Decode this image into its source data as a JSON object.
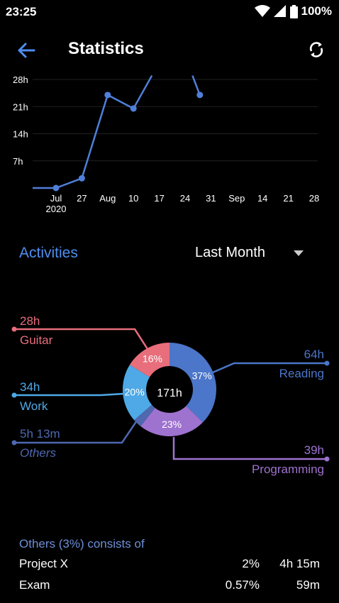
{
  "status_bar": {
    "time": "23:25",
    "battery": "100%"
  },
  "app_bar": {
    "title": "Statistics"
  },
  "chart_data": {
    "type": "line",
    "x": [
      "Jul 2020",
      "27",
      "Aug",
      "10",
      "17",
      "24",
      "31",
      "Sep",
      "14",
      "21",
      "28"
    ],
    "x_tick_labels": [
      [
        "Jul",
        "2020"
      ],
      [
        "27"
      ],
      [
        "Aug"
      ],
      [
        "10"
      ],
      [
        "17"
      ],
      [
        "24"
      ],
      [
        "31"
      ],
      [
        "Sep"
      ],
      [
        "14"
      ],
      [
        "21"
      ],
      [
        "28"
      ]
    ],
    "y_tick_labels": [
      "28h",
      "21h",
      "14h",
      "7h"
    ],
    "ylim": [
      0,
      28
    ],
    "series": [
      {
        "points": [
          {
            "x": "Jul 20",
            "y": 0
          },
          {
            "x": "Jul 27",
            "y": 2.5
          },
          {
            "x": "Aug 3",
            "y": 24
          },
          {
            "x": "Aug 10",
            "y": 20.5
          },
          {
            "x": "Aug 15",
            "y": 29
          },
          {
            "x": "Aug 26",
            "y": 29
          },
          {
            "x": "Aug 28",
            "y": 24
          }
        ]
      }
    ],
    "color": "#4f7fd8",
    "grid": true
  },
  "activities": {
    "title": "Activities",
    "period": "Last Month",
    "total": "171h",
    "slices": [
      {
        "name": "Reading",
        "percent": 37,
        "label": "37%",
        "duration": "64h",
        "color": "#4b76c9"
      },
      {
        "name": "Programming",
        "percent": 23,
        "label": "23%",
        "duration": "39h",
        "color": "#9e72cf"
      },
      {
        "name": "Others",
        "percent": 3,
        "label": "",
        "duration": "5h 13m",
        "color": "#4f68b0"
      },
      {
        "name": "Work",
        "percent": 20,
        "label": "20%",
        "duration": "34h",
        "color": "#4ea9e6"
      },
      {
        "name": "Guitar",
        "percent": 16,
        "label": "16%",
        "duration": "28h",
        "color": "#e86e7c"
      }
    ]
  },
  "others_breakdown": {
    "heading": "Others (3%) consists of",
    "items": [
      {
        "name": "Project X",
        "percent": "2%",
        "duration": "4h 15m"
      },
      {
        "name": "Exam",
        "percent": "0.57%",
        "duration": "59m"
      }
    ]
  }
}
